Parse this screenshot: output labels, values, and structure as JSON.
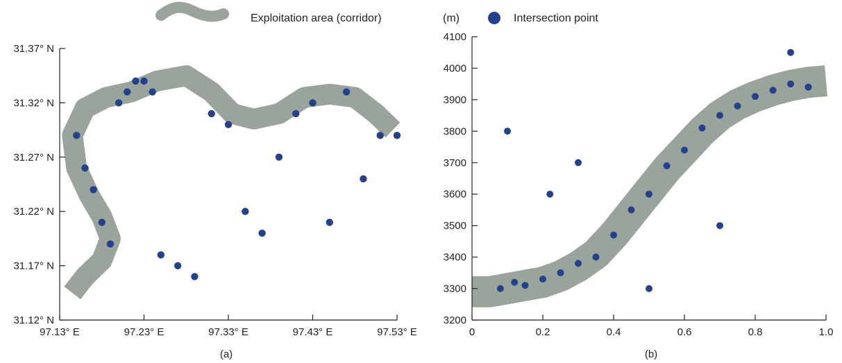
{
  "legend": {
    "corridor_label": "Exploitation area (corridor)",
    "point_label": "Intersection point",
    "unit_label": "(m)"
  },
  "colors": {
    "corridor": "#9ba49a",
    "point": "#22418f",
    "axis": "#222222"
  },
  "chart_data": [
    {
      "type": "scatter",
      "panel_label": "(a)",
      "xlim": [
        97.13,
        97.53
      ],
      "ylim": [
        31.12,
        31.37
      ],
      "x_ticks": [
        97.13,
        97.23,
        97.33,
        97.43,
        97.53
      ],
      "x_tick_labels": [
        "97.13° E",
        "97.23° E",
        "97.33° E",
        "97.43° E",
        "97.53° E"
      ],
      "y_ticks": [
        31.12,
        31.17,
        31.22,
        31.27,
        31.32,
        31.37
      ],
      "y_tick_labels": [
        "31.12° N",
        "31.17° N",
        "31.22° N",
        "31.27° N",
        "31.32° N",
        "31.37° N"
      ],
      "corridor_centerline": [
        [
          97.145,
          31.145
        ],
        [
          97.16,
          31.16
        ],
        [
          97.18,
          31.175
        ],
        [
          97.19,
          31.195
        ],
        [
          97.18,
          31.215
        ],
        [
          97.165,
          31.235
        ],
        [
          97.15,
          31.26
        ],
        [
          97.145,
          31.29
        ],
        [
          97.16,
          31.315
        ],
        [
          97.185,
          31.325
        ],
        [
          97.215,
          31.33
        ],
        [
          97.245,
          31.34
        ],
        [
          97.28,
          31.345
        ],
        [
          97.31,
          31.33
        ],
        [
          97.335,
          31.31
        ],
        [
          97.36,
          31.305
        ],
        [
          97.39,
          31.31
        ],
        [
          97.42,
          31.325
        ],
        [
          97.45,
          31.328
        ],
        [
          97.48,
          31.325
        ],
        [
          97.505,
          31.31
        ],
        [
          97.525,
          31.295
        ]
      ],
      "series": [
        {
          "name": "Intersection point",
          "x": [
            97.15,
            97.16,
            97.17,
            97.18,
            97.19,
            97.2,
            97.21,
            97.22,
            97.23,
            97.24,
            97.25,
            97.27,
            97.29,
            97.31,
            97.33,
            97.35,
            97.37,
            97.39,
            97.41,
            97.43,
            97.45,
            97.47,
            97.49,
            97.51,
            97.53
          ],
          "y": [
            31.29,
            31.26,
            31.24,
            31.21,
            31.19,
            31.32,
            31.33,
            31.34,
            31.34,
            31.33,
            31.18,
            31.17,
            31.16,
            31.31,
            31.3,
            31.22,
            31.2,
            31.27,
            31.31,
            31.32,
            31.21,
            31.33,
            31.25,
            31.29,
            31.29
          ]
        }
      ]
    },
    {
      "type": "scatter",
      "panel_label": "(b)",
      "xlim": [
        0,
        1.0
      ],
      "ylim": [
        3200,
        4100
      ],
      "x_ticks": [
        0,
        0.2,
        0.4,
        0.6,
        0.8,
        1.0
      ],
      "x_tick_labels": [
        "0",
        "0.2",
        "0.4",
        "0.6",
        "0.8",
        "1.0"
      ],
      "y_ticks": [
        3200,
        3300,
        3400,
        3500,
        3600,
        3700,
        3800,
        3900,
        4000,
        4100
      ],
      "y_tick_labels": [
        "3200",
        "3300",
        "3400",
        "3500",
        "3600",
        "3700",
        "3800",
        "3900",
        "4000",
        "4100"
      ],
      "corridor_centerline": [
        [
          0.0,
          3290
        ],
        [
          0.05,
          3290
        ],
        [
          0.1,
          3300
        ],
        [
          0.15,
          3310
        ],
        [
          0.2,
          3320
        ],
        [
          0.25,
          3340
        ],
        [
          0.3,
          3370
        ],
        [
          0.35,
          3410
        ],
        [
          0.4,
          3470
        ],
        [
          0.45,
          3540
        ],
        [
          0.5,
          3610
        ],
        [
          0.55,
          3680
        ],
        [
          0.6,
          3740
        ],
        [
          0.65,
          3800
        ],
        [
          0.7,
          3850
        ],
        [
          0.75,
          3885
        ],
        [
          0.8,
          3910
        ],
        [
          0.85,
          3930
        ],
        [
          0.9,
          3945
        ],
        [
          0.95,
          3955
        ],
        [
          1.0,
          3960
        ]
      ],
      "series": [
        {
          "name": "Intersection point",
          "x": [
            0.08,
            0.12,
            0.15,
            0.2,
            0.25,
            0.3,
            0.35,
            0.4,
            0.45,
            0.5,
            0.55,
            0.6,
            0.65,
            0.7,
            0.75,
            0.8,
            0.85,
            0.9,
            0.95,
            0.1,
            0.3,
            0.5,
            0.7,
            0.9,
            0.22
          ],
          "y": [
            3300,
            3320,
            3310,
            3330,
            3350,
            3380,
            3400,
            3470,
            3550,
            3600,
            3690,
            3740,
            3810,
            3850,
            3880,
            3910,
            3930,
            3950,
            3940,
            3800,
            3700,
            3300,
            3500,
            4050,
            3600
          ]
        }
      ]
    }
  ]
}
